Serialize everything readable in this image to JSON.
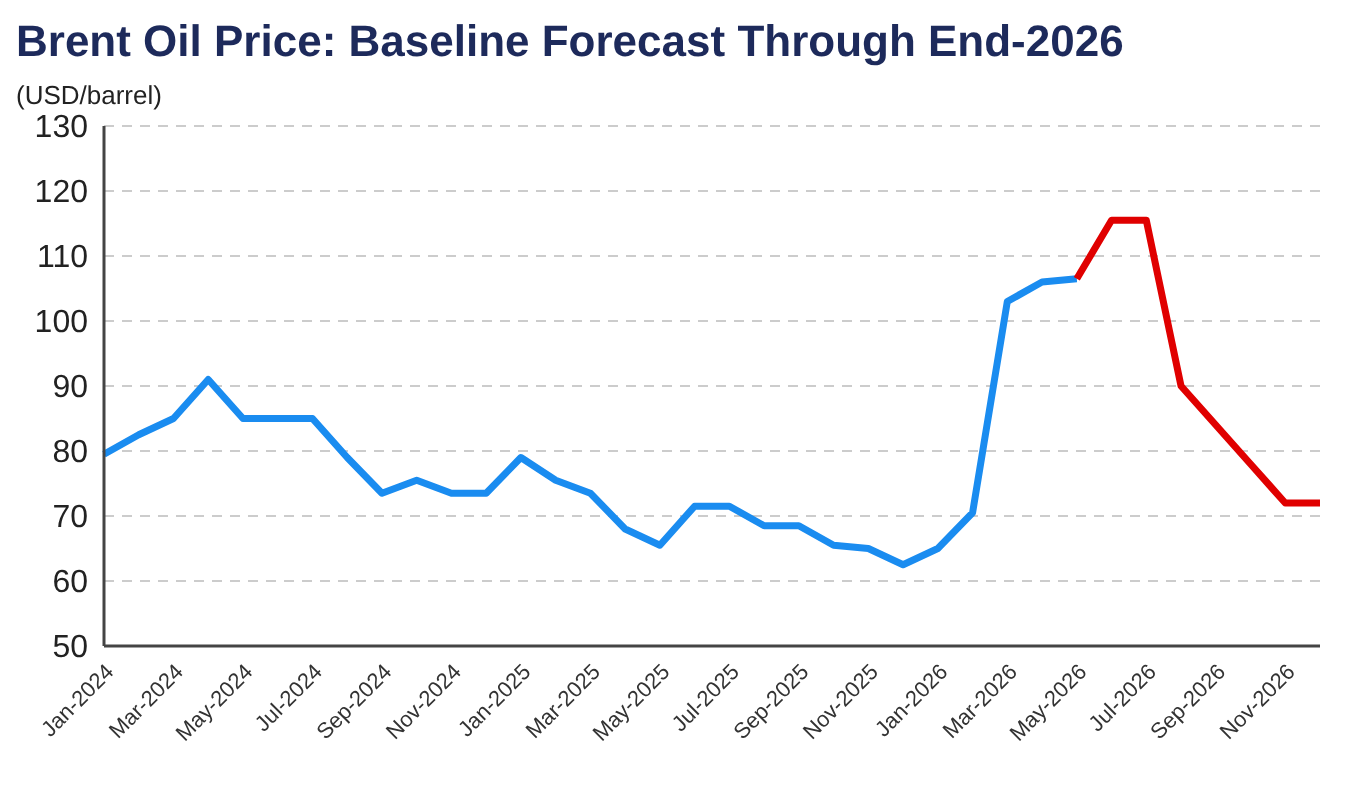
{
  "chart_data": {
    "type": "line",
    "title": "Brent Oil Price: Baseline Forecast Through End-2026",
    "ylabel": "(USD/barrel)",
    "categories": [
      "Jan-2024",
      null,
      "Mar-2024",
      null,
      "May-2024",
      null,
      "Jul-2024",
      null,
      "Sep-2024",
      null,
      "Nov-2024",
      null,
      "Jan-2025",
      null,
      "Mar-2025",
      null,
      "May-2025",
      null,
      "Jul-2025",
      null,
      "Sep-2025",
      null,
      "Nov-2025",
      null,
      "Jan-2026",
      null,
      "Mar-2026",
      null,
      "May-2026",
      null,
      "Jul-2026",
      null,
      "Sep-2026",
      null,
      "Nov-2026",
      null
    ],
    "series": [
      {
        "color": "#1a8cf0",
        "values": [
          79.5,
          82.5,
          85,
          91,
          85,
          85,
          85,
          79,
          73.5,
          75.5,
          73.5,
          73.5,
          79,
          75.5,
          73.5,
          68,
          65.5,
          71.5,
          71.5,
          68.5,
          68.5,
          65.5,
          65,
          62.5,
          65,
          70.5,
          103,
          106,
          106.5,
          null,
          null,
          null,
          null,
          null,
          null,
          null
        ]
      },
      {
        "color": "#e00000",
        "values": [
          null,
          null,
          null,
          null,
          null,
          null,
          null,
          null,
          null,
          null,
          null,
          null,
          null,
          null,
          null,
          null,
          null,
          null,
          null,
          null,
          null,
          null,
          null,
          null,
          null,
          null,
          null,
          null,
          106.5,
          115.5,
          115.5,
          90,
          84,
          78,
          72,
          72
        ]
      }
    ],
    "ylim": [
      50,
      130
    ],
    "yticks": [
      50,
      60,
      70,
      80,
      90,
      100,
      110,
      120,
      130
    ],
    "grid": "y",
    "marker": "none",
    "line_style": "solid"
  }
}
